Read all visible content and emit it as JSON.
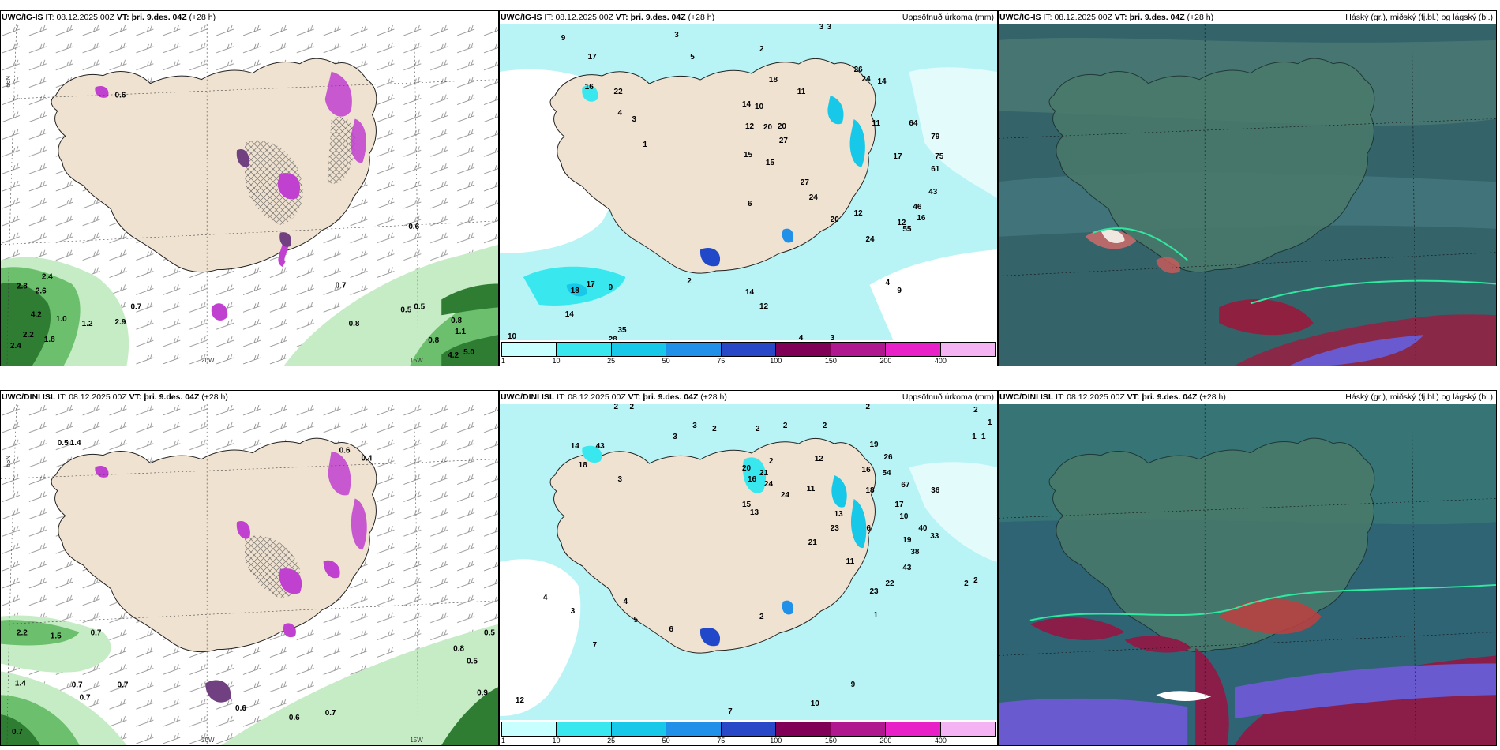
{
  "panels": {
    "p1": {
      "model": "UWC/IG-IS",
      "it_label": "IT:",
      "it": "08.12.2025 00Z",
      "vt_label": "VT:",
      "vt": "þri. 9.des. 04Z",
      "lead": "(+28 h)",
      "right": ""
    },
    "p2": {
      "model": "UWC/IG-IS",
      "it_label": "IT:",
      "it": "08.12.2025 00Z",
      "vt_label": "VT:",
      "vt": "þri. 9.des. 04Z",
      "lead": "(+28 h)",
      "right": "Uppsöfnuð úrkoma (mm)"
    },
    "p3": {
      "model": "UWC/IG-IS",
      "it_label": "IT:",
      "it": "08.12.2025 00Z",
      "vt_label": "VT:",
      "vt": "þri. 9.des. 04Z",
      "lead": "(+28 h)",
      "right": "Háský (gr.), miðský (fj.bl.) og lágský (bl.)"
    },
    "p4": {
      "model": "UWC/DINI ISL",
      "it_label": "IT:",
      "it": "08.12.2025 00Z",
      "vt_label": "VT:",
      "vt": "þri. 9.des. 04Z",
      "lead": "(+28 h)",
      "right": ""
    },
    "p5": {
      "model": "UWC/DINI ISL",
      "it_label": "IT:",
      "it": "08.12.2025 00Z",
      "vt_label": "VT:",
      "vt": "þri. 9.des. 04Z",
      "lead": "(+28 h)",
      "right": "Uppsöfnuð úrkoma (mm)"
    },
    "p6": {
      "model": "UWC/DINI ISL",
      "it_label": "IT:",
      "it": "08.12.2025 00Z",
      "vt_label": "VT:",
      "vt": "þri. 9.des. 04Z",
      "lead": "(+28 h)",
      "right": "Háský (gr.), miðský (fj.bl.) og lágský (bl.)"
    }
  },
  "axis_labels": {
    "lat": "66N",
    "lon_left": "20W",
    "lon_right": "15W"
  },
  "colorbar": {
    "ticks": [
      "1",
      "10",
      "25",
      "50",
      "75",
      "100",
      "150",
      "200",
      "400"
    ],
    "colors": [
      "#c8ffff",
      "#38e8ee",
      "#18c8e8",
      "#2090e8",
      "#2848c8",
      "#800058",
      "#b01890",
      "#e820c8",
      "#f4b4f4"
    ]
  },
  "precip_values_top": [
    "9",
    "3",
    "5",
    "2",
    "3",
    "3",
    "17",
    "16",
    "22",
    "4",
    "3",
    "1",
    "14",
    "18",
    "10",
    "26",
    "24",
    "20",
    "12",
    "20",
    "14",
    "27",
    "15",
    "15",
    "11",
    "11",
    "64",
    "79",
    "75",
    "61",
    "43",
    "46",
    "16",
    "55",
    "17",
    "27",
    "24",
    "12",
    "20",
    "12",
    "24",
    "4",
    "6",
    "18",
    "17",
    "9",
    "2",
    "14",
    "35",
    "28",
    "10",
    "11",
    "12",
    "4",
    "9",
    "3",
    "14"
  ],
  "precip_values_bottom": [
    "2",
    "2",
    "3",
    "3",
    "2",
    "2",
    "2",
    "2",
    "2",
    "14",
    "43",
    "18",
    "3",
    "2",
    "20",
    "21",
    "24",
    "24",
    "16",
    "15",
    "13",
    "11",
    "12",
    "19",
    "26",
    "16",
    "54",
    "67",
    "18",
    "36",
    "17",
    "10",
    "40",
    "33",
    "23",
    "13",
    "6",
    "21",
    "11",
    "19",
    "38",
    "43",
    "22",
    "23",
    "4",
    "1",
    "3",
    "2",
    "4",
    "5",
    "6",
    "7",
    "12",
    "9",
    "10",
    "7",
    "2",
    "2",
    "1",
    "1",
    "2",
    "1"
  ],
  "wind_values_top": [
    "0.6",
    "2.8",
    "2.4",
    "2.6",
    "4.2",
    "1.0",
    "1.2",
    "2.9",
    "2.2",
    "2.4",
    "1.8",
    "0.7",
    "0.8",
    "0.5",
    "0.5",
    "0.8",
    "1.1",
    "0.8",
    "4.2",
    "5.0",
    "0.6",
    "0.7"
  ],
  "wind_values_bottom": [
    "0.5",
    "1.4",
    "0.4",
    "0.6",
    "2.2",
    "1.5",
    "0.7",
    "1.4",
    "0.7",
    "0.7",
    "0.7",
    "0.8",
    "0.5",
    "0.5",
    "0.9",
    "0.7",
    "0.6",
    "0.6",
    "0.7"
  ],
  "colors": {
    "land": "#f0e2d0",
    "sea_precip": "#b8f4f6",
    "green_light": "#c6ecc6",
    "green_mid": "#6cbf6c",
    "green_dark": "#2e7d32",
    "magenta": "#c040d0",
    "purple_dark": "#704080",
    "cloud_base": "#3c6a6a"
  }
}
